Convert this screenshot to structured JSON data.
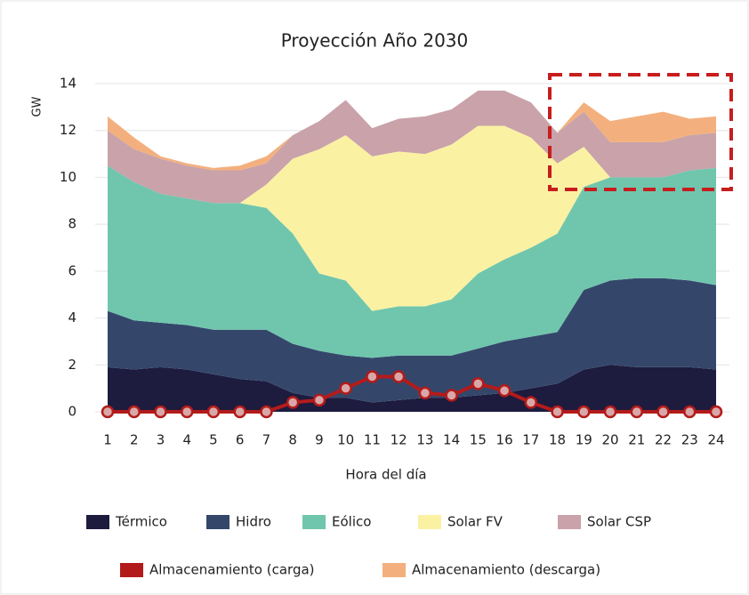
{
  "chart_data": {
    "type": "area",
    "stacked": true,
    "title": "Proyección Año 2030",
    "xlabel": "Hora del día",
    "ylabel": "GW",
    "categories": [
      "1",
      "2",
      "3",
      "4",
      "5",
      "6",
      "7",
      "8",
      "9",
      "10",
      "11",
      "12",
      "13",
      "14",
      "15",
      "16",
      "17",
      "18",
      "19",
      "20",
      "21",
      "22",
      "23",
      "24"
    ],
    "ylim": [
      0,
      14
    ],
    "yticks": [
      0,
      2,
      4,
      6,
      8,
      10,
      12,
      14
    ],
    "grid": true,
    "series": [
      {
        "name": "Térmico",
        "color": "#1d1b3e",
        "style": "area",
        "values": [
          1.9,
          1.8,
          1.9,
          1.8,
          1.6,
          1.4,
          1.3,
          0.8,
          0.6,
          0.6,
          0.4,
          0.5,
          0.6,
          0.6,
          0.7,
          0.8,
          1.0,
          1.2,
          1.8,
          2.0,
          1.9,
          1.9,
          1.9,
          1.8
        ]
      },
      {
        "name": "Hidro",
        "color": "#34476b",
        "style": "area",
        "values": [
          2.4,
          2.1,
          1.9,
          1.9,
          1.9,
          2.1,
          2.2,
          2.1,
          2.0,
          1.8,
          1.9,
          1.9,
          1.8,
          1.8,
          2.0,
          2.2,
          2.2,
          2.2,
          3.4,
          3.6,
          3.8,
          3.8,
          3.7,
          3.6
        ]
      },
      {
        "name": "Eólico",
        "color": "#70c6ad",
        "style": "area",
        "values": [
          6.2,
          5.9,
          5.5,
          5.4,
          5.4,
          5.4,
          5.2,
          4.7,
          3.3,
          3.2,
          2.0,
          2.1,
          2.1,
          2.4,
          3.2,
          3.5,
          3.8,
          4.2,
          4.4,
          4.4,
          4.3,
          4.3,
          4.7,
          5.0
        ]
      },
      {
        "name": "Solar FV",
        "color": "#fbf1a3",
        "style": "area",
        "values": [
          0,
          0,
          0,
          0,
          0,
          0,
          1.0,
          3.2,
          5.3,
          6.2,
          6.6,
          6.6,
          6.5,
          6.6,
          6.3,
          5.7,
          4.7,
          3.0,
          1.7,
          0,
          0,
          0,
          0,
          0
        ]
      },
      {
        "name": "Solar CSP",
        "color": "#c9a2aa",
        "style": "area",
        "values": [
          1.5,
          1.4,
          1.5,
          1.4,
          1.4,
          1.4,
          0.9,
          1.0,
          1.2,
          1.5,
          1.2,
          1.4,
          1.6,
          1.5,
          1.5,
          1.5,
          1.5,
          1.3,
          1.5,
          1.5,
          1.5,
          1.5,
          1.5,
          1.5
        ]
      },
      {
        "name": "Almacenamiento (carga)",
        "color": "#b31b1b",
        "style": "line",
        "values": [
          0,
          0,
          0,
          0,
          0,
          0,
          0,
          0.4,
          0.5,
          1.0,
          1.5,
          1.5,
          0.8,
          0.7,
          1.2,
          0.9,
          0.4,
          0,
          0,
          0,
          0,
          0,
          0,
          0
        ]
      },
      {
        "name": "Almacenamiento (descarga)",
        "color": "#f3b07e",
        "style": "area",
        "values": [
          0.6,
          0.5,
          0.1,
          0.1,
          0.1,
          0.2,
          0.3,
          0,
          0,
          0,
          0,
          0,
          0,
          0,
          0,
          0,
          0,
          0,
          0.4,
          0.9,
          1.1,
          1.3,
          0.7,
          0.7
        ]
      }
    ]
  }
}
